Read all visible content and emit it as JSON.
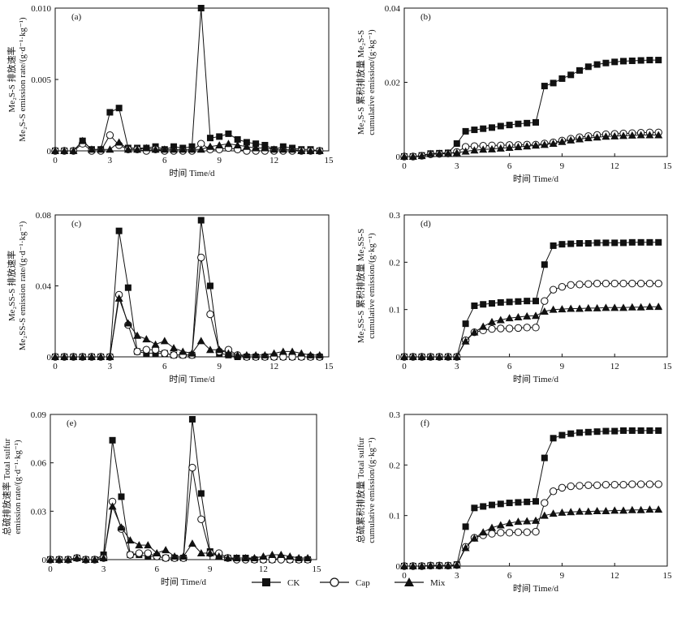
{
  "legend": [
    {
      "name": "CK",
      "marker": "square"
    },
    {
      "name": "Cap",
      "marker": "circle"
    },
    {
      "name": "Mix",
      "marker": "triangle"
    }
  ],
  "chart_data": [
    {
      "panel": "(a)",
      "type": "line",
      "xlabel": "时间 Time/d",
      "ylabel_lines": [
        "Me₂S-S 排放速率",
        "Me₂S-S emission rate/(g·d⁻¹·kg⁻¹)"
      ],
      "xlim": [
        0,
        15
      ],
      "ylim": [
        0,
        0.01
      ],
      "xticks": [
        0,
        3,
        6,
        9,
        12,
        15
      ],
      "xtick_labels": [
        "0",
        "3",
        "6",
        "9",
        "12",
        "15"
      ],
      "yticks": [
        0,
        0.005,
        0.01
      ],
      "ytick_labels": [
        "0",
        "0.005",
        "0.010"
      ],
      "x": [
        0,
        0.5,
        1,
        1.5,
        2,
        2.5,
        3,
        3.5,
        4,
        4.5,
        5,
        5.5,
        6,
        6.5,
        7,
        7.5,
        8,
        8.5,
        9,
        9.5,
        10,
        10.5,
        11,
        11.5,
        12,
        12.5,
        13,
        13.5,
        14,
        14.5
      ],
      "series": [
        {
          "name": "CK",
          "marker": "square",
          "values": [
            0,
            0,
            0,
            0.0007,
            0.0001,
            0.0001,
            0.0027,
            0.003,
            0.0002,
            0.0002,
            0.0002,
            0.0003,
            0.0001,
            0.0003,
            0.0002,
            0.0003,
            0.01,
            0.0009,
            0.001,
            0.0012,
            0.0008,
            0.0006,
            0.0005,
            0.0004,
            0.0001,
            0.0003,
            0.0002,
            0.0001,
            0.0001,
            0
          ]
        },
        {
          "name": "Cap",
          "marker": "circle",
          "values": [
            0,
            0,
            0,
            0.0005,
            0,
            0,
            0.0011,
            0.0004,
            0.0001,
            0.0001,
            0,
            0.0001,
            0,
            0,
            0,
            0,
            0.0005,
            0.0001,
            0.0001,
            0.0002,
            0.0001,
            0,
            0,
            0,
            0,
            0,
            0,
            0,
            0,
            0
          ]
        },
        {
          "name": "Mix",
          "marker": "triangle",
          "values": [
            0,
            0,
            0,
            0.0007,
            0.0001,
            0.0001,
            0.0001,
            0.0006,
            0.0001,
            0.0001,
            0.0002,
            0.0001,
            0.0001,
            0.0001,
            0.0001,
            0.0001,
            0.0001,
            0.0003,
            0.0004,
            0.0005,
            0.0004,
            0.0003,
            0.0002,
            0.0002,
            0.0001,
            0.0001,
            0.0001,
            0,
            0,
            0
          ]
        }
      ]
    },
    {
      "panel": "(b)",
      "type": "line",
      "xlabel": "时间 Time/d",
      "ylabel_lines": [
        "Me₂S-S 累积排放量 Me₂S-S",
        "cumulative emission/(g·kg⁻¹)"
      ],
      "xlim": [
        0,
        15
      ],
      "ylim": [
        0,
        0.04
      ],
      "xticks": [
        0,
        3,
        6,
        9,
        12,
        15
      ],
      "xtick_labels": [
        "0",
        "3",
        "6",
        "9",
        "12",
        "15"
      ],
      "yticks": [
        0,
        0.02,
        0.04
      ],
      "ytick_labels": [
        "0",
        "0.02",
        "0.04"
      ],
      "x": [
        0,
        0.5,
        1,
        1.5,
        2,
        2.5,
        3,
        3.5,
        4,
        4.5,
        5,
        5.5,
        6,
        6.5,
        7,
        7.5,
        8,
        8.5,
        9,
        9.5,
        10,
        10.5,
        11,
        11.5,
        12,
        12.5,
        13,
        13.5,
        14,
        14.5
      ],
      "series": [
        {
          "name": "CK",
          "marker": "square",
          "values": [
            0,
            0,
            0.0003,
            0.0008,
            0.0009,
            0.001,
            0.0035,
            0.0068,
            0.0072,
            0.0075,
            0.0078,
            0.0082,
            0.0085,
            0.0088,
            0.009,
            0.0092,
            0.019,
            0.0198,
            0.021,
            0.022,
            0.0232,
            0.0242,
            0.0248,
            0.0252,
            0.0255,
            0.0257,
            0.0258,
            0.0259,
            0.026,
            0.026
          ]
        },
        {
          "name": "Cap",
          "marker": "circle",
          "values": [
            0,
            0,
            0.0002,
            0.0006,
            0.0007,
            0.0008,
            0.0012,
            0.0026,
            0.0028,
            0.0029,
            0.003,
            0.003,
            0.0031,
            0.0031,
            0.0032,
            0.0032,
            0.0035,
            0.0038,
            0.0043,
            0.0048,
            0.0052,
            0.0055,
            0.0058,
            0.006,
            0.0061,
            0.0062,
            0.0063,
            0.0064,
            0.0065,
            0.0065
          ]
        },
        {
          "name": "Mix",
          "marker": "triangle",
          "values": [
            0,
            0,
            0.0002,
            0.0007,
            0.0008,
            0.0009,
            0.001,
            0.0014,
            0.0017,
            0.0019,
            0.002,
            0.0022,
            0.0024,
            0.0026,
            0.0028,
            0.003,
            0.0032,
            0.0035,
            0.004,
            0.0044,
            0.0047,
            0.005,
            0.0052,
            0.0054,
            0.0055,
            0.0056,
            0.0057,
            0.0058,
            0.0058,
            0.0058
          ]
        }
      ]
    },
    {
      "panel": "(c)",
      "type": "line",
      "xlabel": "时间 Time/d",
      "ylabel_lines": [
        "Me₂SS-S 排放速率",
        "Me₂SS-S emission rate/(g·d⁻¹·kg⁻¹)"
      ],
      "xlim": [
        0,
        15
      ],
      "ylim": [
        0,
        0.08
      ],
      "xticks": [
        0,
        3,
        6,
        9,
        12,
        15
      ],
      "xtick_labels": [
        "0",
        "3",
        "6",
        "9",
        "12",
        "15"
      ],
      "yticks": [
        0,
        0.04,
        0.08
      ],
      "ytick_labels": [
        "0",
        "0.04",
        "0.08"
      ],
      "x": [
        0,
        0.5,
        1,
        1.5,
        2,
        2.5,
        3,
        3.5,
        4,
        4.5,
        5,
        5.5,
        6,
        6.5,
        7,
        7.5,
        8,
        8.5,
        9,
        9.5,
        10,
        10.5,
        11,
        11.5,
        12,
        12.5,
        13,
        13.5,
        14,
        14.5
      ],
      "series": [
        {
          "name": "CK",
          "marker": "square",
          "values": [
            0,
            0,
            0,
            0,
            0,
            0,
            0,
            0.071,
            0.039,
            0.003,
            0.002,
            0.002,
            0.002,
            0.001,
            0.001,
            0.001,
            0.077,
            0.04,
            0.002,
            0.001,
            0,
            0,
            0,
            0,
            0,
            0,
            0,
            0,
            0,
            0
          ]
        },
        {
          "name": "Cap",
          "marker": "circle",
          "values": [
            0,
            0,
            0,
            0,
            0,
            0,
            0,
            0.035,
            0.018,
            0.003,
            0.004,
            0.004,
            0.002,
            0.001,
            0.001,
            0.001,
            0.056,
            0.024,
            0.003,
            0.004,
            0.001,
            0,
            0,
            0,
            0,
            0,
            0,
            0,
            0,
            0
          ]
        },
        {
          "name": "Mix",
          "marker": "triangle",
          "values": [
            0,
            0,
            0,
            0,
            0,
            0,
            0,
            0.033,
            0.019,
            0.012,
            0.01,
            0.007,
            0.009,
            0.005,
            0.003,
            0.002,
            0.009,
            0.004,
            0.004,
            0.002,
            0.001,
            0.001,
            0.001,
            0.001,
            0.002,
            0.003,
            0.003,
            0.002,
            0.001,
            0.001
          ]
        }
      ]
    },
    {
      "panel": "(d)",
      "type": "line",
      "xlabel": "时间 Time/d",
      "ylabel_lines": [
        "Me₂SS-S 累积排放量 Me₂SS-S",
        "cumulative emission/(g·kg⁻¹)"
      ],
      "xlim": [
        0,
        15
      ],
      "ylim": [
        0,
        0.3
      ],
      "xticks": [
        0,
        3,
        6,
        9,
        12,
        15
      ],
      "xtick_labels": [
        "0",
        "3",
        "6",
        "9",
        "12",
        "15"
      ],
      "yticks": [
        0,
        0.1,
        0.2,
        0.3
      ],
      "ytick_labels": [
        "0",
        "0.1",
        "0.2",
        "0.3"
      ],
      "x": [
        0,
        0.5,
        1,
        1.5,
        2,
        2.5,
        3,
        3.5,
        4,
        4.5,
        5,
        5.5,
        6,
        6.5,
        7,
        7.5,
        8,
        8.5,
        9,
        9.5,
        10,
        10.5,
        11,
        11.5,
        12,
        12.5,
        13,
        13.5,
        14,
        14.5
      ],
      "series": [
        {
          "name": "CK",
          "marker": "square",
          "values": [
            0,
            0,
            0,
            0,
            0,
            0,
            0,
            0.07,
            0.108,
            0.111,
            0.113,
            0.115,
            0.116,
            0.117,
            0.118,
            0.118,
            0.195,
            0.235,
            0.238,
            0.239,
            0.24,
            0.24,
            0.241,
            0.241,
            0.241,
            0.241,
            0.242,
            0.242,
            0.242,
            0.242
          ]
        },
        {
          "name": "Cap",
          "marker": "circle",
          "values": [
            0,
            0,
            0,
            0,
            0,
            0,
            0,
            0.035,
            0.052,
            0.056,
            0.059,
            0.06,
            0.06,
            0.061,
            0.062,
            0.062,
            0.118,
            0.142,
            0.148,
            0.152,
            0.153,
            0.154,
            0.155,
            0.155,
            0.155,
            0.155,
            0.155,
            0.155,
            0.155,
            0.155
          ]
        },
        {
          "name": "Mix",
          "marker": "triangle",
          "values": [
            0,
            0,
            0,
            0,
            0,
            0,
            0,
            0.033,
            0.052,
            0.064,
            0.074,
            0.078,
            0.082,
            0.084,
            0.086,
            0.087,
            0.096,
            0.1,
            0.101,
            0.102,
            0.102,
            0.103,
            0.103,
            0.104,
            0.104,
            0.104,
            0.105,
            0.105,
            0.106,
            0.106
          ]
        }
      ]
    },
    {
      "panel": "(e)",
      "type": "line",
      "xlabel": "时间 Time/d",
      "ylabel_lines": [
        "总硫排放速率 Total sulfur",
        "emission rate/(g·d⁻¹·kg⁻¹)"
      ],
      "xlim": [
        0,
        15
      ],
      "ylim": [
        0,
        0.09
      ],
      "xticks": [
        0,
        3,
        6,
        9,
        12,
        15
      ],
      "xtick_labels": [
        "0",
        "3",
        "6",
        "9",
        "12",
        "15"
      ],
      "yticks": [
        0,
        0.03,
        0.06,
        0.09
      ],
      "ytick_labels": [
        "0",
        "0.03",
        "0.06",
        "0.09"
      ],
      "x": [
        0,
        0.5,
        1,
        1.5,
        2,
        2.5,
        3,
        3.5,
        4,
        4.5,
        5,
        5.5,
        6,
        6.5,
        7,
        7.5,
        8,
        8.5,
        9,
        9.5,
        10,
        10.5,
        11,
        11.5,
        12,
        12.5,
        13,
        13.5,
        14,
        14.5
      ],
      "series": [
        {
          "name": "CK",
          "marker": "square",
          "values": [
            0,
            0,
            0,
            0.001,
            0,
            0,
            0.003,
            0.074,
            0.039,
            0.003,
            0.003,
            0.002,
            0.002,
            0.001,
            0.001,
            0.001,
            0.087,
            0.041,
            0.005,
            0.002,
            0.001,
            0.001,
            0.001,
            0,
            0,
            0,
            0.001,
            0,
            0,
            0
          ]
        },
        {
          "name": "Cap",
          "marker": "circle",
          "values": [
            0,
            0,
            0,
            0.001,
            0,
            0,
            0.001,
            0.036,
            0.019,
            0.003,
            0.004,
            0.004,
            0.002,
            0.001,
            0.001,
            0.001,
            0.057,
            0.025,
            0.004,
            0.004,
            0.001,
            0,
            0,
            0,
            0,
            0,
            0,
            0,
            0,
            0
          ]
        },
        {
          "name": "Mix",
          "marker": "triangle",
          "values": [
            0,
            0,
            0,
            0.001,
            0,
            0,
            0.001,
            0.033,
            0.02,
            0.012,
            0.009,
            0.009,
            0.004,
            0.006,
            0.002,
            0.002,
            0.01,
            0.004,
            0.004,
            0.002,
            0.001,
            0.001,
            0.001,
            0.001,
            0.002,
            0.003,
            0.003,
            0.002,
            0.001,
            0.001
          ]
        }
      ]
    },
    {
      "panel": "(f)",
      "type": "line",
      "xlabel": "时间 Time/d",
      "ylabel_lines": [
        "总硫累积排放量 Total sulfur",
        "cumulative emission/(g·kg⁻¹)"
      ],
      "xlim": [
        0,
        15
      ],
      "ylim": [
        0,
        0.3
      ],
      "xticks": [
        0,
        3,
        6,
        9,
        12,
        15
      ],
      "xtick_labels": [
        "0",
        "3",
        "6",
        "9",
        "12",
        "15"
      ],
      "yticks": [
        0,
        0.1,
        0.2,
        0.3
      ],
      "ytick_labels": [
        "0",
        "0.1",
        "0.2",
        "0.3"
      ],
      "x": [
        0,
        0.5,
        1,
        1.5,
        2,
        2.5,
        3,
        3.5,
        4,
        4.5,
        5,
        5.5,
        6,
        6.5,
        7,
        7.5,
        8,
        8.5,
        9,
        9.5,
        10,
        10.5,
        11,
        11.5,
        12,
        12.5,
        13,
        13.5,
        14,
        14.5
      ],
      "series": [
        {
          "name": "CK",
          "marker": "square",
          "values": [
            0,
            0,
            0,
            0.001,
            0.001,
            0.001,
            0.003,
            0.078,
            0.115,
            0.118,
            0.121,
            0.123,
            0.125,
            0.126,
            0.127,
            0.128,
            0.214,
            0.253,
            0.259,
            0.262,
            0.264,
            0.265,
            0.266,
            0.267,
            0.267,
            0.268,
            0.268,
            0.268,
            0.268,
            0.268
          ]
        },
        {
          "name": "Cap",
          "marker": "circle",
          "values": [
            0,
            0,
            0,
            0.001,
            0.001,
            0.001,
            0.002,
            0.038,
            0.056,
            0.061,
            0.064,
            0.066,
            0.066,
            0.067,
            0.067,
            0.068,
            0.125,
            0.148,
            0.155,
            0.158,
            0.159,
            0.16,
            0.16,
            0.161,
            0.161,
            0.161,
            0.162,
            0.162,
            0.162,
            0.162
          ]
        },
        {
          "name": "Mix",
          "marker": "triangle",
          "values": [
            0,
            0,
            0,
            0.001,
            0.001,
            0.001,
            0.002,
            0.036,
            0.055,
            0.067,
            0.076,
            0.081,
            0.085,
            0.088,
            0.089,
            0.09,
            0.1,
            0.104,
            0.106,
            0.107,
            0.108,
            0.108,
            0.109,
            0.109,
            0.11,
            0.11,
            0.111,
            0.111,
            0.112,
            0.112
          ]
        }
      ]
    }
  ]
}
